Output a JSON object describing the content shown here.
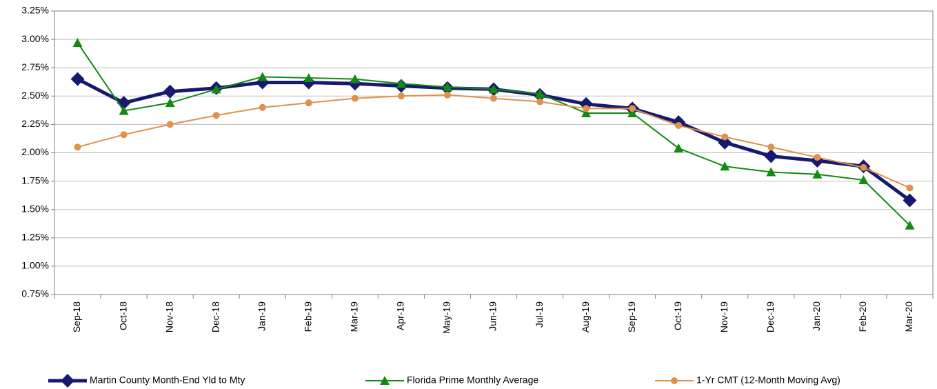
{
  "chart_data": {
    "type": "line",
    "categories": [
      "Sep-18",
      "Oct-18",
      "Nov-18",
      "Dec-18",
      "Jan-19",
      "Feb-19",
      "Mar-19",
      "Apr-19",
      "May-19",
      "Jun-19",
      "Jul-19",
      "Aug-19",
      "Sep-19",
      "Oct-19",
      "Nov-19",
      "Dec-19",
      "Jan-20",
      "Feb-20",
      "Mar-20"
    ],
    "series": [
      {
        "name": "Martin County Month-End Yld to Mty",
        "color": "#16196e",
        "marker": "diamond",
        "values": [
          2.65,
          2.44,
          2.54,
          2.57,
          2.62,
          2.62,
          2.61,
          2.59,
          2.57,
          2.56,
          2.51,
          2.43,
          2.39,
          2.27,
          2.09,
          1.97,
          1.93,
          1.88,
          1.58
        ]
      },
      {
        "name": "Florida Prime Monthly Average",
        "color": "#138a13",
        "marker": "triangle",
        "values": [
          2.97,
          2.37,
          2.44,
          2.56,
          2.67,
          2.66,
          2.65,
          2.61,
          2.58,
          2.56,
          2.52,
          2.35,
          2.35,
          2.04,
          1.88,
          1.83,
          1.81,
          1.76,
          1.36
        ]
      },
      {
        "name": "1-Yr CMT (12-Month Moving Avg)",
        "color": "#e0914c",
        "marker": "circle",
        "values": [
          2.05,
          2.16,
          2.25,
          2.33,
          2.4,
          2.44,
          2.48,
          2.5,
          2.51,
          2.48,
          2.45,
          2.39,
          2.39,
          2.24,
          2.14,
          2.05,
          1.96,
          1.87,
          1.69
        ]
      }
    ],
    "ylim": [
      0.75,
      3.25
    ],
    "yticks": [
      {
        "value": 0.75,
        "label": "0.75%"
      },
      {
        "value": 1.0,
        "label": "1.00%"
      },
      {
        "value": 1.25,
        "label": "1.25%"
      },
      {
        "value": 1.5,
        "label": "1.50%"
      },
      {
        "value": 1.75,
        "label": "1.75%"
      },
      {
        "value": 2.0,
        "label": "2.00%"
      },
      {
        "value": 2.25,
        "label": "2.25%"
      },
      {
        "value": 2.5,
        "label": "2.50%"
      },
      {
        "value": 2.75,
        "label": "2.75%"
      },
      {
        "value": 3.0,
        "label": "3.00%"
      },
      {
        "value": 3.25,
        "label": "3.25%"
      }
    ],
    "grid": true,
    "legend": "bottom"
  }
}
